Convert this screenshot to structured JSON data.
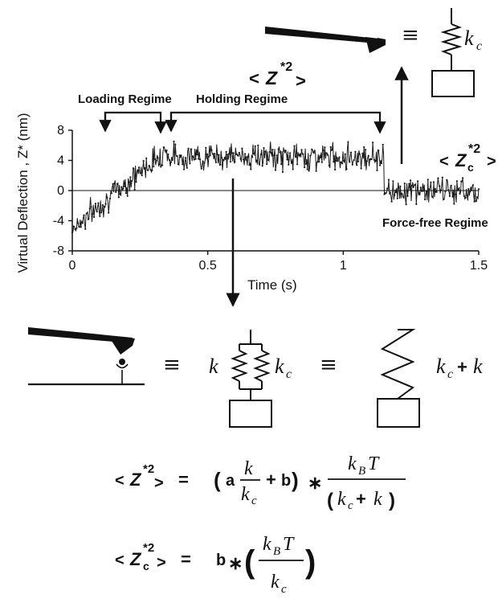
{
  "chart_data": {
    "type": "line",
    "title": "",
    "xlabel": "Time (s)",
    "ylabel": "Virtual Deflection , Z* (nm)",
    "xlim": [
      0,
      1.5
    ],
    "ylim": [
      -8,
      8
    ],
    "x_ticks": [
      "0",
      "0.5",
      "1",
      "1.5"
    ],
    "y_ticks": [
      "8",
      "4",
      "0",
      "-4",
      "-8"
    ],
    "zero_line": true,
    "regimes": [
      {
        "name": "Loading Regime",
        "x_start": 0.0,
        "x_end": 0.35,
        "y_start": -5,
        "y_end": 5.5
      },
      {
        "name": "Holding Regime",
        "x_start": 0.35,
        "x_end": 1.15,
        "y_mean": 4.5
      },
      {
        "name": "Force-free Regime",
        "x_start": 1.15,
        "x_end": 1.5,
        "y_mean": 0
      }
    ],
    "noise_amplitude_nm": 1.3
  },
  "labels": {
    "loading_regime": "Loading Regime",
    "holding_regime": "Holding Regime",
    "force_free_regime": "Force-free Regime",
    "msd_top": "< Z*2 >",
    "msd_c": "< Zc*2 >"
  },
  "springs": {
    "k": "k",
    "k_c": "kc",
    "k_c_plus_k": "kc+ k",
    "equiv": "≡"
  },
  "equations": {
    "eq1": "< Z*2 > = (a k/kc + b) * kBT/(kc+ k)",
    "eq2": "< Zc*2 > = b * (kBT/kc)",
    "eq_sign": "=",
    "times": "∗",
    "a": "a",
    "b": "b",
    "plus": "+",
    "k_B": "k",
    "T": "T"
  },
  "colors": {
    "ink": "#111111",
    "trace": "#1a1a1a"
  }
}
